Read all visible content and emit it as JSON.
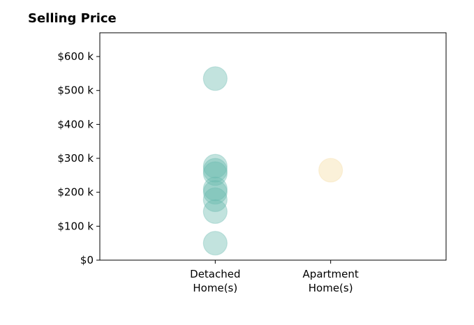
{
  "chart_data": {
    "type": "scatter",
    "title": "Selling Price",
    "xlabel": "",
    "ylabel": "",
    "categories": [
      "Detached\nHome(s)",
      "Apartment\nHome(s)"
    ],
    "xlim": [
      -1,
      2
    ],
    "ylim": [
      0,
      670000
    ],
    "yticks": [
      0,
      100000,
      200000,
      300000,
      400000,
      500000,
      600000
    ],
    "ytick_labels": [
      "$0",
      "$100 k",
      "$200 k",
      "$300 k",
      "$400 k",
      "$500 k",
      "$600 k"
    ],
    "grid": false,
    "series": [
      {
        "category": "Detached\nHome(s)",
        "color": "#66b8ad",
        "values": [
          535000,
          277000,
          265000,
          255000,
          210000,
          200000,
          178000,
          143000,
          50000
        ]
      },
      {
        "category": "Apartment\nHome(s)",
        "color": "#f6dba0",
        "values": [
          265000
        ]
      }
    ],
    "marker_opacity": 0.4
  }
}
